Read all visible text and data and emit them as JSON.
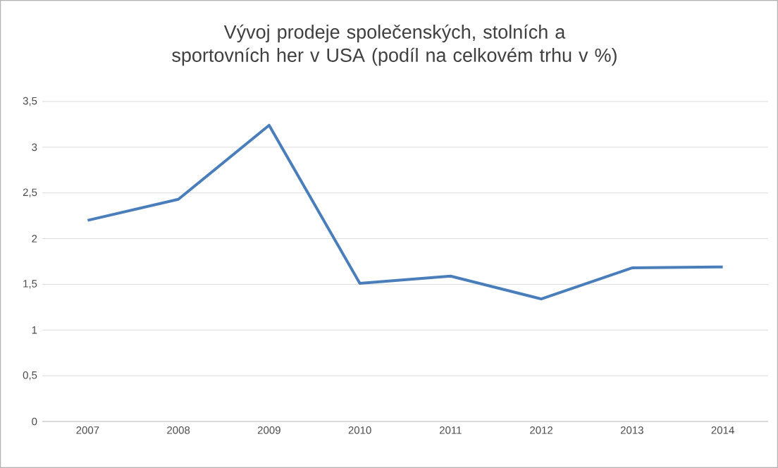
{
  "chart_data": {
    "type": "line",
    "title": "Vývoj prodeje společenských, stolních a sportovních her v USA (podíl na celkovém trhu v %)",
    "categories": [
      "2007",
      "2008",
      "2009",
      "2010",
      "2011",
      "2012",
      "2013",
      "2014"
    ],
    "values": [
      2.2,
      2.43,
      3.24,
      1.51,
      1.59,
      1.34,
      1.68,
      1.69
    ],
    "color": "#4a7ebb",
    "ylim": [
      0,
      3.5
    ],
    "yticks": [
      {
        "value": 0,
        "label": "0"
      },
      {
        "value": 0.5,
        "label": "0,5"
      },
      {
        "value": 1,
        "label": "1"
      },
      {
        "value": 1.5,
        "label": "1,5"
      },
      {
        "value": 2,
        "label": "2"
      },
      {
        "value": 2.5,
        "label": "2,5"
      },
      {
        "value": 3,
        "label": "3"
      },
      {
        "value": 3.5,
        "label": "3,5"
      }
    ],
    "grid": "y",
    "marker": "none",
    "line_style": "solid"
  }
}
